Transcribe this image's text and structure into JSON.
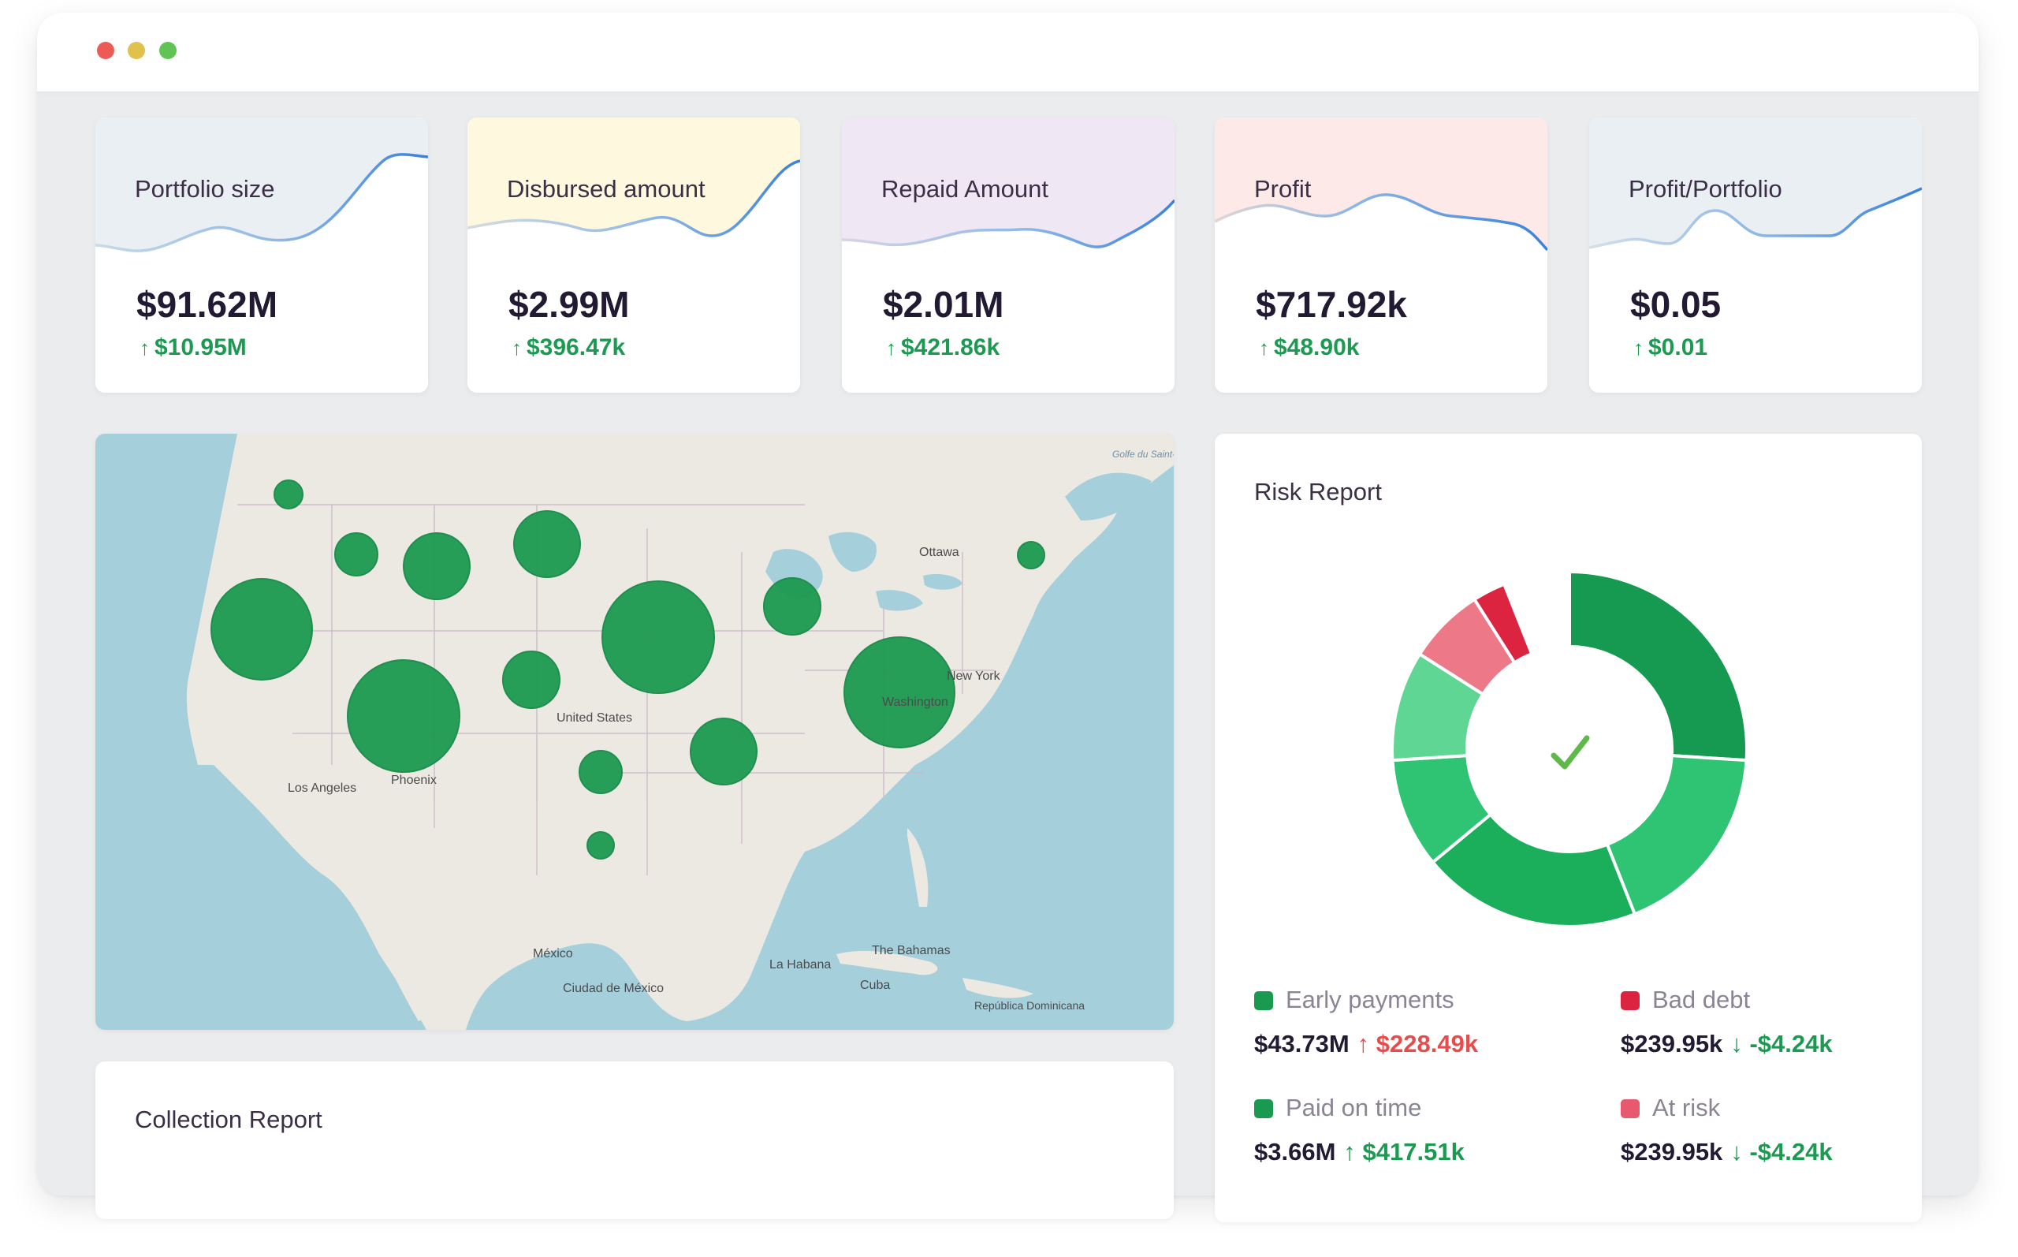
{
  "kpis": [
    {
      "title": "Portfolio size",
      "value": "$91.62M",
      "delta": "$10.95M",
      "arrow": "↑",
      "bg": "#e9eff3"
    },
    {
      "title": "Disbursed amount",
      "value": "$2.99M",
      "delta": "$396.47k",
      "arrow": "↑",
      "bg": "#fdf8de"
    },
    {
      "title": "Repaid Amount",
      "value": "$2.01M",
      "delta": "$421.86k",
      "arrow": "↑",
      "bg": "#efe8f4"
    },
    {
      "title": "Profit",
      "value": "$717.92k",
      "delta": "$48.90k",
      "arrow": "↑",
      "bg": "#fde9e7"
    },
    {
      "title": "Profit/Portfolio",
      "value": "$0.05",
      "delta": "$0.01",
      "arrow": "↑",
      "bg": "#e9eff3"
    }
  ],
  "map": {
    "labels": [
      "Ottawa",
      "New York",
      "Washington",
      "United States",
      "Phoenix",
      "Los Angeles",
      "México",
      "Ciudad de México",
      "La Habana",
      "The Bahamas",
      "Cuba",
      "República Dominicana",
      "Golfe du Saint-Laurent"
    ],
    "bubble_color": "#1d9a51"
  },
  "collection": {
    "title": "Collection Report"
  },
  "risk": {
    "title": "Risk Report",
    "check_icon": "check-icon",
    "legend": [
      {
        "label": "Early payments",
        "amount": "$43.73M",
        "change": "$228.49k",
        "arrow": "↑",
        "color": "#1a9a50"
      },
      {
        "label": "Bad debt",
        "amount": "$239.95k",
        "change": "-$4.24k",
        "arrow": "↓",
        "color": "#dc2340"
      },
      {
        "label": "Paid on time",
        "amount": "$3.66M",
        "change": "$417.51k",
        "arrow": "↑",
        "color": "#1a9a50"
      },
      {
        "label": "At risk",
        "amount": "$239.95k",
        "change": "-$4.24k",
        "arrow": "↓",
        "color": "#e8586f"
      }
    ],
    "segments": [
      {
        "share": 0.26,
        "color": "#169a51"
      },
      {
        "share": 0.18,
        "color": "#2fc374"
      },
      {
        "share": 0.2,
        "color": "#1bae5b"
      },
      {
        "share": 0.1,
        "color": "#2fc374"
      },
      {
        "share": 0.1,
        "color": "#5fd693"
      },
      {
        "share": 0.07,
        "color": "#ed7887"
      },
      {
        "share": 0.03,
        "color": "#dc2340"
      }
    ]
  }
}
